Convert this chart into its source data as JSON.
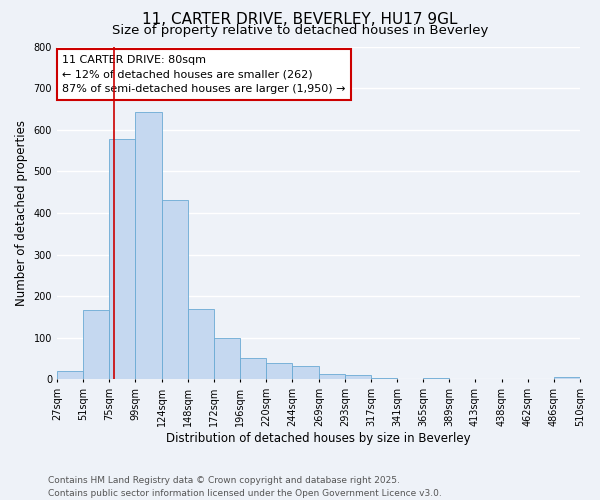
{
  "title": "11, CARTER DRIVE, BEVERLEY, HU17 9GL",
  "subtitle": "Size of property relative to detached houses in Beverley",
  "xlabel": "Distribution of detached houses by size in Beverley",
  "ylabel": "Number of detached properties",
  "bin_edges": [
    27,
    51,
    75,
    99,
    124,
    148,
    172,
    196,
    220,
    244,
    269,
    293,
    317,
    341,
    365,
    389,
    413,
    438,
    462,
    486,
    510
  ],
  "bar_heights": [
    20,
    168,
    578,
    642,
    430,
    170,
    100,
    52,
    40,
    33,
    12,
    10,
    3,
    1,
    4,
    1,
    0,
    0,
    0,
    5
  ],
  "bar_color": "#c5d8f0",
  "bar_edge_color": "#6aaad4",
  "marker_value": 80,
  "marker_color": "#cc0000",
  "annotation_lines": [
    "11 CARTER DRIVE: 80sqm",
    "← 12% of detached houses are smaller (262)",
    "87% of semi-detached houses are larger (1,950) →"
  ],
  "annotation_box_color": "#ffffff",
  "annotation_box_edge_color": "#cc0000",
  "ylim": [
    0,
    800
  ],
  "yticks": [
    0,
    100,
    200,
    300,
    400,
    500,
    600,
    700,
    800
  ],
  "tick_labels": [
    "27sqm",
    "51sqm",
    "75sqm",
    "99sqm",
    "124sqm",
    "148sqm",
    "172sqm",
    "196sqm",
    "220sqm",
    "244sqm",
    "269sqm",
    "293sqm",
    "317sqm",
    "341sqm",
    "365sqm",
    "389sqm",
    "413sqm",
    "438sqm",
    "462sqm",
    "486sqm",
    "510sqm"
  ],
  "footer_lines": [
    "Contains HM Land Registry data © Crown copyright and database right 2025.",
    "Contains public sector information licensed under the Open Government Licence v3.0."
  ],
  "background_color": "#eef2f8",
  "grid_color": "#ffffff",
  "title_fontsize": 11,
  "subtitle_fontsize": 9.5,
  "axis_label_fontsize": 8.5,
  "tick_fontsize": 7,
  "annotation_fontsize": 8,
  "footer_fontsize": 6.5
}
